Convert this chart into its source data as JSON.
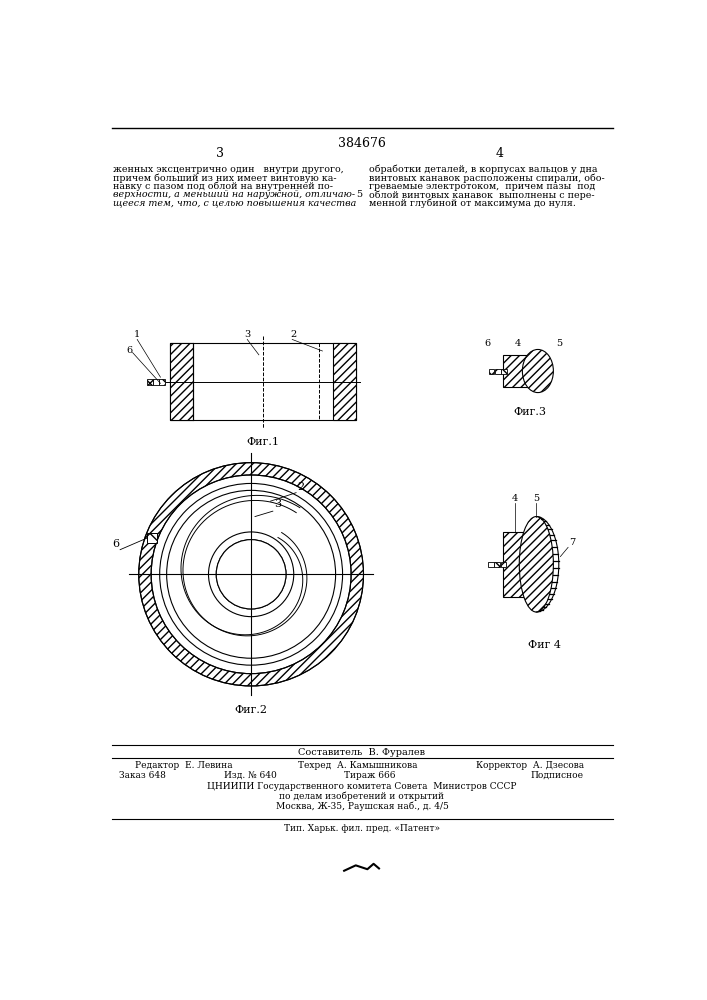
{
  "title": "384676",
  "page_left": "3",
  "page_right": "4",
  "text_left_lines": [
    "женных эксцентрично один   внутри другого,",
    "причем больший из них имеет винтовую ка-",
    "навку с пазом под облой на внутренней по-",
    "верхности, а меньший на наружной, отличаю-",
    "щееся тем, что, с целью повышения качества"
  ],
  "text_right_lines": [
    "обработки деталей, в корпусах вальцов у дна",
    "винтовых канавок расположены спирали, обо-",
    "греваемые электротоком,  причем пазы  под",
    "облой винтовых канавок  выполнены с пере-",
    "менной глубиной от максимума до нуля."
  ],
  "line_number": "5",
  "fig1_label": "Фиг.1",
  "fig2_label": "Фиг.2",
  "fig3_label": "Фиг.3",
  "fig4_label": "Фиг 4",
  "bottom_composer": "Составитель  В. Фуралев",
  "bottom_editor": "Редактор  Е. Левина",
  "bottom_tech": "Техред  А. Камышникова",
  "bottom_corr": "Корректор  А. Дзесова",
  "bottom_order": "Заказ 648",
  "bottom_pub": "Изд. № 640",
  "bottom_circ": "Тираж 666",
  "bottom_sign": "Подписное",
  "bottom_org": "ЦНИИПИ Государственного комитета Совета  Министров СССР",
  "bottom_affairs": "по делам изобретений и открытий",
  "bottom_addr": "Москва, Ж-35, Раушская наб., д. 4/5",
  "bottom_print": "Тип. Харьк. фил. пред. «Патент»",
  "bg_color": "#ffffff",
  "line_color": "#000000"
}
